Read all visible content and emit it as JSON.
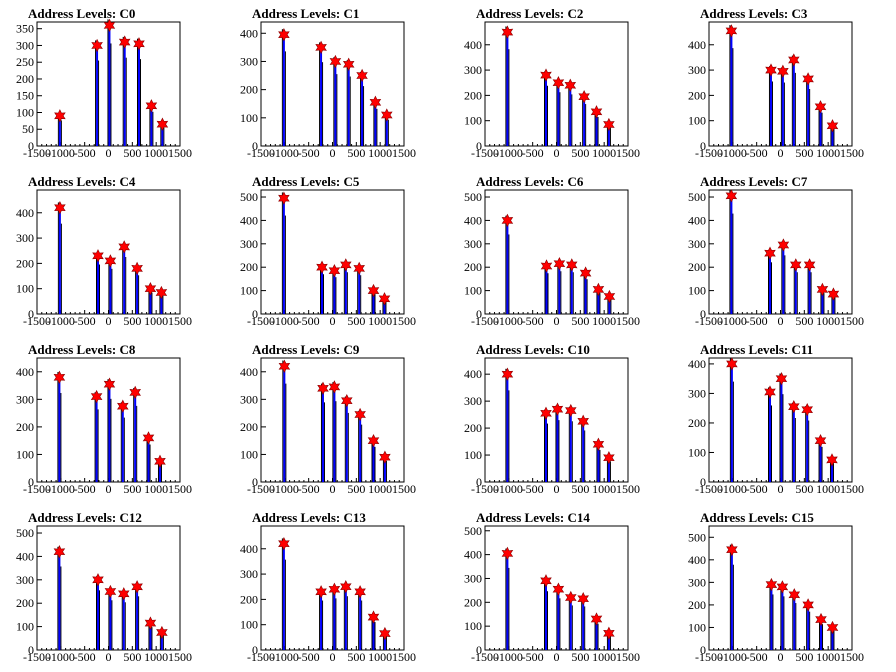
{
  "figure": {
    "background": "#ffffff",
    "hist_color": "#0000ff",
    "line_color": "#000000",
    "marker_color": "#ff0000",
    "marker_symbol": "star-marker-icon"
  },
  "chart_data": [
    {
      "type": "bar",
      "title": "Address Levels: C0",
      "xlim": [
        -1500,
        1500
      ],
      "ylim": [
        0,
        370
      ],
      "xticks": [
        "-1500",
        "-1000",
        "-500",
        "0",
        "500",
        "1000",
        "1500"
      ],
      "yticks": [
        0,
        50,
        100,
        150,
        200,
        250,
        300,
        350
      ],
      "peaks": {
        "x": [
          -1020,
          -240,
          20,
          340,
          640,
          900,
          1130
        ],
        "y": [
          90,
          300,
          360,
          310,
          305,
          120,
          65
        ]
      }
    },
    {
      "type": "bar",
      "title": "Address Levels: C1",
      "xlim": [
        -1500,
        1500
      ],
      "ylim": [
        0,
        440
      ],
      "xticks": [
        "-1500",
        "-1000",
        "-500",
        "0",
        "500",
        "1000",
        "1500"
      ],
      "yticks": [
        0,
        100,
        200,
        300,
        400
      ],
      "peaks": {
        "x": [
          -1020,
          -240,
          60,
          340,
          620,
          900,
          1140
        ],
        "y": [
          395,
          350,
          300,
          290,
          250,
          155,
          110
        ]
      }
    },
    {
      "type": "bar",
      "title": "Address Levels: C2",
      "xlim": [
        -1500,
        1500
      ],
      "ylim": [
        0,
        490
      ],
      "xticks": [
        "-1500",
        "-1000",
        "-500",
        "0",
        "500",
        "1000",
        "1500"
      ],
      "yticks": [
        0,
        100,
        200,
        300,
        400
      ],
      "peaks": {
        "x": [
          -1030,
          -220,
          40,
          290,
          580,
          840,
          1100
        ],
        "y": [
          450,
          280,
          250,
          240,
          195,
          135,
          85
        ]
      }
    },
    {
      "type": "bar",
      "title": "Address Levels: C3",
      "xlim": [
        -1500,
        1500
      ],
      "ylim": [
        0,
        490
      ],
      "xticks": [
        "-1500",
        "-1000",
        "-500",
        "0",
        "500",
        "1000",
        "1500"
      ],
      "yticks": [
        0,
        100,
        200,
        300,
        400
      ],
      "peaks": {
        "x": [
          -1030,
          -200,
          50,
          280,
          580,
          840,
          1090
        ],
        "y": [
          455,
          300,
          295,
          340,
          265,
          155,
          80
        ]
      }
    },
    {
      "type": "bar",
      "title": "Address Levels: C4",
      "xlim": [
        -1500,
        1500
      ],
      "ylim": [
        0,
        490
      ],
      "xticks": [
        "-1500",
        "-1000",
        "-500",
        "0",
        "500",
        "1000",
        "1500"
      ],
      "yticks": [
        0,
        100,
        200,
        300,
        400
      ],
      "peaks": {
        "x": [
          -1020,
          -220,
          40,
          330,
          600,
          880,
          1110
        ],
        "y": [
          420,
          230,
          210,
          265,
          180,
          100,
          85
        ]
      }
    },
    {
      "type": "bar",
      "title": "Address Levels: C5",
      "xlim": [
        -1500,
        1500
      ],
      "ylim": [
        0,
        530
      ],
      "xticks": [
        "-1500",
        "-1000",
        "-500",
        "0",
        "500",
        "1000",
        "1500"
      ],
      "yticks": [
        0,
        100,
        200,
        300,
        400,
        500
      ],
      "peaks": {
        "x": [
          -1020,
          -220,
          40,
          280,
          560,
          860,
          1090
        ],
        "y": [
          495,
          200,
          185,
          210,
          195,
          100,
          65
        ]
      }
    },
    {
      "type": "bar",
      "title": "Address Levels: C6",
      "xlim": [
        -1500,
        1500
      ],
      "ylim": [
        0,
        530
      ],
      "xticks": [
        "-1500",
        "-1000",
        "-500",
        "0",
        "500",
        "1000",
        "1500"
      ],
      "yticks": [
        0,
        100,
        200,
        300,
        400,
        500
      ],
      "peaks": {
        "x": [
          -1030,
          -210,
          60,
          320,
          610,
          880,
          1110
        ],
        "y": [
          400,
          205,
          215,
          210,
          175,
          105,
          75
        ]
      }
    },
    {
      "type": "bar",
      "title": "Address Levels: C7",
      "xlim": [
        -1500,
        1500
      ],
      "ylim": [
        0,
        530
      ],
      "xticks": [
        "-1500",
        "-1000",
        "-500",
        "0",
        "500",
        "1000",
        "1500"
      ],
      "yticks": [
        0,
        100,
        200,
        300,
        400,
        500
      ],
      "peaks": {
        "x": [
          -1030,
          -220,
          60,
          320,
          610,
          880,
          1110
        ],
        "y": [
          505,
          260,
          295,
          210,
          210,
          105,
          85
        ]
      }
    },
    {
      "type": "bar",
      "title": "Address Levels: C8",
      "xlim": [
        -1500,
        1500
      ],
      "ylim": [
        0,
        450
      ],
      "xticks": [
        "-1500",
        "-1000",
        "-500",
        "0",
        "500",
        "1000",
        "1500"
      ],
      "yticks": [
        0,
        100,
        200,
        300,
        400
      ],
      "peaks": {
        "x": [
          -1030,
          -250,
          20,
          300,
          560,
          840,
          1080
        ],
        "y": [
          380,
          310,
          355,
          275,
          325,
          160,
          75
        ]
      }
    },
    {
      "type": "bar",
      "title": "Address Levels: C9",
      "xlim": [
        -1500,
        1500
      ],
      "ylim": [
        0,
        450
      ],
      "xticks": [
        "-1500",
        "-1000",
        "-500",
        "0",
        "500",
        "1000",
        "1500"
      ],
      "yticks": [
        0,
        100,
        200,
        300,
        400
      ],
      "peaks": {
        "x": [
          -1010,
          -200,
          40,
          300,
          580,
          860,
          1100
        ],
        "y": [
          420,
          340,
          345,
          295,
          245,
          150,
          90
        ]
      }
    },
    {
      "type": "bar",
      "title": "Address Levels: C10",
      "xlim": [
        -1500,
        1500
      ],
      "ylim": [
        0,
        460
      ],
      "xticks": [
        "-1500",
        "-1000",
        "-500",
        "0",
        "500",
        "1000",
        "1500"
      ],
      "yticks": [
        0,
        100,
        200,
        300,
        400
      ],
      "peaks": {
        "x": [
          -1030,
          -220,
          20,
          300,
          560,
          880,
          1100
        ],
        "y": [
          400,
          255,
          270,
          265,
          225,
          140,
          90
        ]
      }
    },
    {
      "type": "bar",
      "title": "Address Levels: C11",
      "xlim": [
        -1500,
        1500
      ],
      "ylim": [
        0,
        420
      ],
      "xticks": [
        "-1500",
        "-1000",
        "-500",
        "0",
        "500",
        "1000",
        "1500"
      ],
      "yticks": [
        0,
        100,
        200,
        300,
        400
      ],
      "peaks": {
        "x": [
          -1020,
          -220,
          20,
          280,
          560,
          840,
          1080
        ],
        "y": [
          400,
          305,
          350,
          255,
          245,
          140,
          75
        ]
      }
    },
    {
      "type": "bar",
      "title": "Address Levels: C12",
      "xlim": [
        -1500,
        1500
      ],
      "ylim": [
        0,
        530
      ],
      "xticks": [
        "-1500",
        "-1000",
        "-500",
        "0",
        "500",
        "1000",
        "1500"
      ],
      "yticks": [
        0,
        100,
        200,
        300,
        400,
        500
      ],
      "peaks": {
        "x": [
          -1030,
          -220,
          40,
          320,
          600,
          880,
          1120
        ],
        "y": [
          420,
          300,
          250,
          240,
          270,
          115,
          75
        ]
      }
    },
    {
      "type": "bar",
      "title": "Address Levels: C13",
      "xlim": [
        -1500,
        1500
      ],
      "ylim": [
        0,
        490
      ],
      "xticks": [
        "-1500",
        "-1000",
        "-500",
        "0",
        "500",
        "1000",
        "1500"
      ],
      "yticks": [
        0,
        100,
        200,
        300,
        400
      ],
      "peaks": {
        "x": [
          -1020,
          -240,
          40,
          280,
          580,
          860,
          1100
        ],
        "y": [
          420,
          230,
          240,
          250,
          230,
          130,
          65
        ]
      }
    },
    {
      "type": "bar",
      "title": "Address Levels: C14",
      "xlim": [
        -1500,
        1500
      ],
      "ylim": [
        0,
        520
      ],
      "xticks": [
        "-1500",
        "-1000",
        "-500",
        "0",
        "500",
        "1000",
        "1500"
      ],
      "yticks": [
        0,
        100,
        200,
        300,
        400,
        500
      ],
      "peaks": {
        "x": [
          -1030,
          -220,
          40,
          300,
          560,
          840,
          1100
        ],
        "y": [
          405,
          290,
          255,
          220,
          215,
          130,
          70
        ]
      }
    },
    {
      "type": "bar",
      "title": "Address Levels: C15",
      "xlim": [
        -1500,
        1500
      ],
      "ylim": [
        0,
        550
      ],
      "xticks": [
        "-1500",
        "-1000",
        "-500",
        "0",
        "500",
        "1000",
        "1500"
      ],
      "yticks": [
        0,
        100,
        200,
        300,
        400,
        500
      ],
      "peaks": {
        "x": [
          -1020,
          -190,
          40,
          290,
          580,
          850,
          1090
        ],
        "y": [
          445,
          290,
          280,
          245,
          200,
          135,
          100
        ]
      }
    }
  ]
}
